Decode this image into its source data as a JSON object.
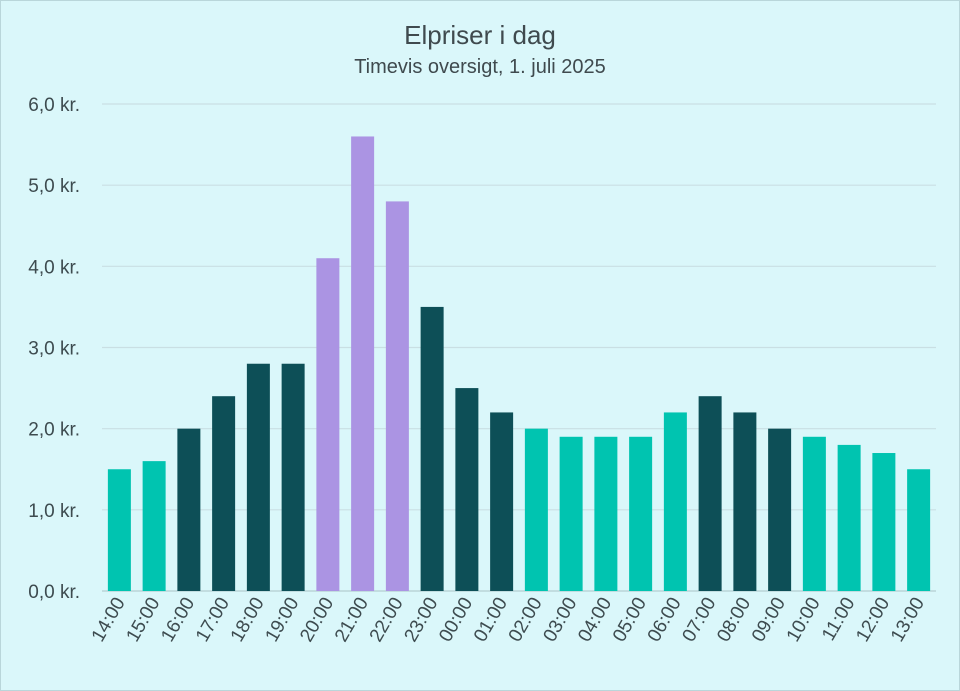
{
  "chart_data": {
    "type": "bar",
    "title": "Elpriser i dag",
    "subtitle": "Timevis oversigt, 1. juli 2025",
    "xlabel": "",
    "ylabel": "",
    "ylim": [
      0,
      6
    ],
    "yticks": [
      "0,0 kr.",
      "1,0 kr.",
      "2,0 kr.",
      "3,0 kr.",
      "4,0 kr.",
      "5,0 kr.",
      "6,0 kr."
    ],
    "grid": true,
    "categories": [
      "14:00",
      "15:00",
      "16:00",
      "17:00",
      "18:00",
      "19:00",
      "20:00",
      "21:00",
      "22:00",
      "23:00",
      "00:00",
      "01:00",
      "02:00",
      "03:00",
      "04:00",
      "05:00",
      "06:00",
      "07:00",
      "08:00",
      "09:00",
      "10:00",
      "11:00",
      "12:00",
      "13:00"
    ],
    "values": [
      1.5,
      1.6,
      2.0,
      2.4,
      2.8,
      2.8,
      4.1,
      5.6,
      4.8,
      3.5,
      2.5,
      2.2,
      2.0,
      1.9,
      1.9,
      1.9,
      2.2,
      2.4,
      2.2,
      2.0,
      1.9,
      1.8,
      1.7,
      1.5
    ],
    "levels": [
      "low",
      "low",
      "mid",
      "mid",
      "mid",
      "mid",
      "high",
      "high",
      "high",
      "mid",
      "mid",
      "mid",
      "low",
      "low",
      "low",
      "low",
      "low",
      "mid",
      "mid",
      "mid",
      "low",
      "low",
      "low",
      "low"
    ],
    "colors": {
      "low": "#00c4b0",
      "mid": "#0d4f57",
      "high": "#ab94e3",
      "grid": "#c9dfe3",
      "axis": "#b5cdd1"
    }
  }
}
